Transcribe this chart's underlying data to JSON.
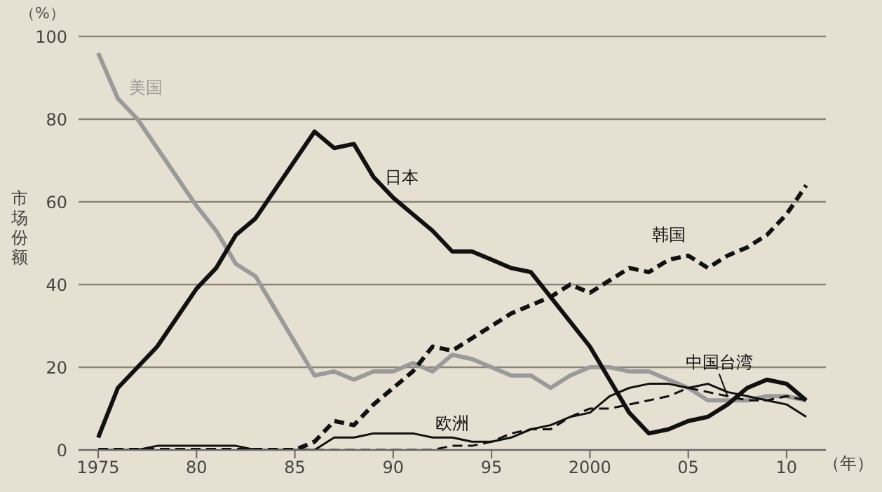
{
  "chart_data": {
    "type": "line",
    "ylabel": "市场份额",
    "xlabel": "（年）",
    "annotations": [
      "（%）"
    ],
    "x": [
      1975,
      1976,
      1977,
      1978,
      1979,
      1980,
      1981,
      1982,
      1983,
      1984,
      1985,
      1986,
      1987,
      1988,
      1989,
      1990,
      1991,
      1992,
      1993,
      1994,
      1995,
      1996,
      1997,
      1998,
      1999,
      2000,
      2001,
      2002,
      2003,
      2004,
      2005,
      2006,
      2007,
      2008,
      2009,
      2010,
      2011
    ],
    "series": [
      {
        "name": "美国",
        "color": "#9a9a9a",
        "line_style": "solid",
        "values": [
          96,
          85,
          80,
          73,
          66,
          59,
          53,
          45,
          42,
          34,
          26,
          18,
          19,
          17,
          19,
          19,
          21,
          19,
          23,
          22,
          20,
          18,
          18,
          15,
          18,
          20,
          20,
          19,
          19,
          17,
          15,
          12,
          12,
          12,
          13,
          13,
          12
        ]
      },
      {
        "name": "日本",
        "color": "#111111",
        "line_style": "solid",
        "values": [
          3,
          15,
          20,
          25,
          32,
          39,
          44,
          52,
          56,
          63,
          70,
          77,
          73,
          74,
          66,
          61,
          57,
          53,
          48,
          48,
          46,
          44,
          43,
          37,
          31,
          25,
          17,
          9,
          4,
          5,
          7,
          8,
          11,
          15,
          17,
          16,
          12
        ]
      },
      {
        "name": "韩国",
        "color": "#111111",
        "line_style": "dashed",
        "values": [
          0,
          0,
          0,
          0,
          0,
          0,
          0,
          0,
          0,
          0,
          0,
          2,
          7,
          6,
          11,
          15,
          19,
          25,
          24,
          27,
          30,
          33,
          35,
          37,
          40,
          38,
          41,
          44,
          43,
          46,
          47,
          44,
          47,
          49,
          52,
          57,
          64
        ]
      },
      {
        "name": "中国台湾",
        "color": "#111111",
        "line_style": "dashed",
        "values": [
          0,
          0,
          0,
          0,
          0,
          0,
          0,
          0,
          0,
          0,
          0,
          0,
          0,
          0,
          0,
          0,
          0,
          0,
          1,
          1,
          2,
          4,
          5,
          5,
          8,
          10,
          10,
          11,
          12,
          13,
          15,
          14,
          13,
          12,
          12,
          13,
          12
        ]
      },
      {
        "name": "欧洲",
        "color": "#111111",
        "line_style": "solid",
        "values": [
          0,
          0,
          0,
          1,
          1,
          1,
          1,
          1,
          0,
          0,
          0,
          0,
          3,
          3,
          4,
          4,
          4,
          3,
          3,
          2,
          2,
          3,
          5,
          6,
          8,
          9,
          13,
          15,
          16,
          16,
          15,
          16,
          14,
          13,
          12,
          11,
          8
        ]
      }
    ],
    "xlim": [
      1974,
      2012
    ],
    "xticks": [
      1975,
      {
        "value": 1980,
        "label": "80"
      },
      {
        "value": 1985,
        "label": "85"
      },
      {
        "value": 1990,
        "label": "90"
      },
      {
        "value": 1995,
        "label": "95"
      },
      2000,
      {
        "value": 2005,
        "label": "05"
      },
      {
        "value": 2010,
        "label": "10"
      }
    ],
    "ylim": [
      0,
      100
    ],
    "yticks": [
      0,
      20,
      40,
      60,
      80,
      100
    ],
    "grid": "y",
    "marker": "none"
  }
}
